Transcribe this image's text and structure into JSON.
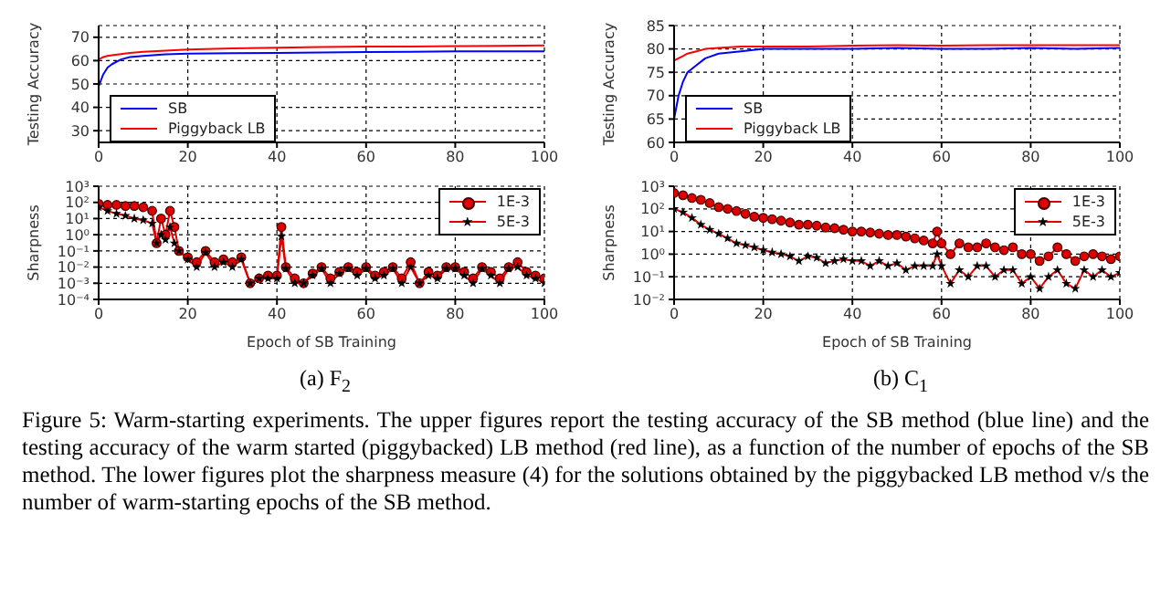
{
  "chart_data": [
    {
      "type": "line",
      "ylabel": "Testing Accuracy",
      "x": [
        0,
        1,
        2,
        3,
        5,
        7,
        10,
        15,
        20,
        30,
        40,
        50,
        60,
        70,
        80,
        90,
        100
      ],
      "xlim": [
        0,
        100
      ],
      "xticks": [
        0,
        20,
        40,
        60,
        80,
        100
      ],
      "ylim": [
        25,
        75
      ],
      "yticks": [
        30,
        40,
        50,
        60,
        70
      ],
      "grid": true,
      "legend": "bottom left",
      "marker": "none",
      "series": [
        {
          "name": "SB",
          "color": "#0000ff",
          "values": [
            49,
            54,
            57,
            58.5,
            60.5,
            61.5,
            62,
            62.7,
            63,
            63.2,
            63.3,
            63.5,
            63.7,
            63.8,
            64,
            64,
            64
          ]
        },
        {
          "name": "Piggyback LB",
          "color": "#ff0000",
          "values": [
            60.5,
            61.5,
            62,
            62.3,
            62.8,
            63.3,
            63.8,
            64.3,
            64.7,
            65.2,
            65.5,
            65.8,
            66,
            66,
            66.2,
            66.3,
            66.5
          ]
        }
      ]
    },
    {
      "type": "line",
      "ylabel": "Testing Accuracy",
      "x": [
        0,
        1,
        2,
        3,
        5,
        7,
        10,
        15,
        20,
        30,
        40,
        50,
        60,
        70,
        80,
        90,
        100
      ],
      "xlim": [
        0,
        100
      ],
      "xticks": [
        0,
        20,
        40,
        60,
        80,
        100
      ],
      "ylim": [
        60,
        85
      ],
      "yticks": [
        60,
        65,
        70,
        75,
        80,
        85
      ],
      "grid": true,
      "legend": "bottom left",
      "marker": "none",
      "series": [
        {
          "name": "SB",
          "color": "#0000ff",
          "values": [
            65,
            70,
            73,
            75,
            76.5,
            78,
            79,
            79.5,
            80,
            80,
            80,
            80.2,
            80,
            80,
            80.2,
            80,
            80.2
          ]
        },
        {
          "name": "Piggyback LB",
          "color": "#ff0000",
          "values": [
            77.5,
            78,
            78.5,
            79,
            79.5,
            80,
            80.2,
            80.5,
            80.5,
            80.5,
            80.7,
            80.8,
            80.7,
            80.8,
            80.8,
            80.8,
            80.8
          ]
        }
      ]
    },
    {
      "type": "line",
      "ylabel": "Sharpness",
      "xlabel": "Epoch of SB Training",
      "annotations": [
        "(a) F$_{2}$"
      ],
      "log": "y",
      "x": [
        0,
        2,
        4,
        6,
        8,
        10,
        12,
        13,
        14,
        15,
        16,
        17,
        18,
        20,
        22,
        24,
        26,
        28,
        30,
        32,
        34,
        36,
        38,
        40,
        41,
        42,
        44,
        46,
        48,
        50,
        52,
        54,
        56,
        58,
        60,
        62,
        64,
        66,
        68,
        70,
        72,
        74,
        76,
        78,
        80,
        82,
        84,
        86,
        88,
        90,
        92,
        94,
        96,
        98,
        100
      ],
      "xlim": [
        0,
        100
      ],
      "xticks": [
        0,
        20,
        40,
        60,
        80,
        100
      ],
      "ylim": [
        0.0001,
        1000
      ],
      "yticks": [
        {
          "value": 0.0001,
          "label": "10⁻⁴"
        },
        {
          "value": 0.001,
          "label": "10⁻³"
        },
        {
          "value": 0.01,
          "label": "10⁻²"
        },
        {
          "value": 0.1,
          "label": "10⁻¹"
        },
        {
          "value": 1,
          "label": "10⁰"
        },
        {
          "value": 10,
          "label": "10¹"
        },
        {
          "value": 100,
          "label": "10²"
        },
        {
          "value": 1000,
          "label": "10³"
        }
      ],
      "grid": true,
      "legend": "top right",
      "series": [
        {
          "name": "1E-3",
          "color": "#e00000",
          "marker": "circle",
          "values": [
            80,
            70,
            70,
            60,
            60,
            50,
            30,
            0.3,
            10,
            1,
            30,
            3,
            0.1,
            0.04,
            0.02,
            0.1,
            0.02,
            0.03,
            0.02,
            0.04,
            0.001,
            0.002,
            0.003,
            0.003,
            3,
            0.01,
            0.002,
            0.001,
            0.004,
            0.01,
            0.002,
            0.005,
            0.01,
            0.005,
            0.01,
            0.003,
            0.005,
            0.01,
            0.002,
            0.02,
            0.001,
            0.005,
            0.003,
            0.01,
            0.01,
            0.005,
            0.002,
            0.01,
            0.005,
            0.002,
            0.01,
            0.02,
            0.005,
            0.003,
            0.002
          ]
        },
        {
          "name": "5E-3",
          "color": "#000000",
          "marker": "star",
          "values": [
            50,
            30,
            20,
            15,
            10,
            8,
            5,
            0.3,
            1,
            0.5,
            3,
            0.3,
            0.1,
            0.03,
            0.01,
            0.08,
            0.01,
            0.02,
            0.01,
            0.03,
            0.001,
            0.002,
            0.002,
            0.002,
            0.8,
            0.008,
            0.001,
            0.001,
            0.003,
            0.008,
            0.001,
            0.004,
            0.008,
            0.003,
            0.008,
            0.002,
            0.003,
            0.008,
            0.001,
            0.01,
            0.001,
            0.003,
            0.002,
            0.008,
            0.008,
            0.003,
            0.001,
            0.008,
            0.003,
            0.001,
            0.008,
            0.01,
            0.003,
            0.002,
            0.001
          ]
        }
      ]
    },
    {
      "type": "line",
      "ylabel": "Sharpness",
      "xlabel": "Epoch of SB Training",
      "annotations": [
        "(b) C$_{1}$",
        "Figure 5: Warm-starting experiments. The upper figures report the testing accuracy of the SB method (blue line) and the testing accuracy of the warm started (piggybacked) LB method (red line), as a function of the number of epochs of the SB method. The lower figures plot the sharpness measure (4) for the solutions obtained by the piggybacked LB method v/s the number of warm-starting epochs of the SB method."
      ],
      "log": "y",
      "x": [
        0,
        2,
        4,
        6,
        8,
        10,
        12,
        14,
        16,
        18,
        20,
        22,
        24,
        26,
        28,
        30,
        32,
        34,
        36,
        38,
        40,
        42,
        44,
        46,
        48,
        50,
        52,
        54,
        56,
        58,
        59,
        60,
        62,
        64,
        66,
        68,
        70,
        72,
        74,
        76,
        78,
        80,
        82,
        84,
        86,
        88,
        90,
        92,
        94,
        96,
        98,
        100
      ],
      "xlim": [
        0,
        100
      ],
      "xticks": [
        0,
        20,
        40,
        60,
        80,
        100
      ],
      "ylim": [
        0.01,
        1000
      ],
      "yticks": [
        {
          "value": 0.01,
          "label": "10⁻²"
        },
        {
          "value": 0.1,
          "label": "10⁻¹"
        },
        {
          "value": 1,
          "label": "10⁰"
        },
        {
          "value": 10,
          "label": "10¹"
        },
        {
          "value": 100,
          "label": "10²"
        },
        {
          "value": 1000,
          "label": "10³"
        }
      ],
      "grid": true,
      "legend": "top right",
      "series": [
        {
          "name": "1E-3",
          "color": "#e00000",
          "marker": "circle",
          "values": [
            500,
            400,
            300,
            250,
            180,
            120,
            100,
            80,
            60,
            45,
            40,
            35,
            30,
            25,
            20,
            20,
            18,
            15,
            14,
            12,
            10,
            10,
            9,
            8,
            7,
            7,
            6,
            5,
            4,
            3,
            10,
            3,
            1,
            3,
            2,
            2,
            3,
            2,
            1.5,
            2,
            1,
            1,
            0.5,
            0.8,
            2,
            1,
            0.5,
            0.8,
            1,
            0.8,
            0.6,
            0.8
          ]
        },
        {
          "name": "5E-3",
          "color": "#000000",
          "marker": "star",
          "values": [
            100,
            70,
            40,
            20,
            12,
            8,
            5,
            3,
            2.5,
            2,
            1.5,
            1.2,
            1,
            0.8,
            0.5,
            0.8,
            0.7,
            0.4,
            0.5,
            0.6,
            0.5,
            0.5,
            0.3,
            0.5,
            0.3,
            0.4,
            0.2,
            0.3,
            0.3,
            0.3,
            1,
            0.3,
            0.05,
            0.2,
            0.1,
            0.3,
            0.3,
            0.1,
            0.2,
            0.2,
            0.05,
            0.1,
            0.03,
            0.1,
            0.2,
            0.05,
            0.03,
            0.2,
            0.1,
            0.2,
            0.1,
            0.15
          ]
        }
      ]
    }
  ]
}
